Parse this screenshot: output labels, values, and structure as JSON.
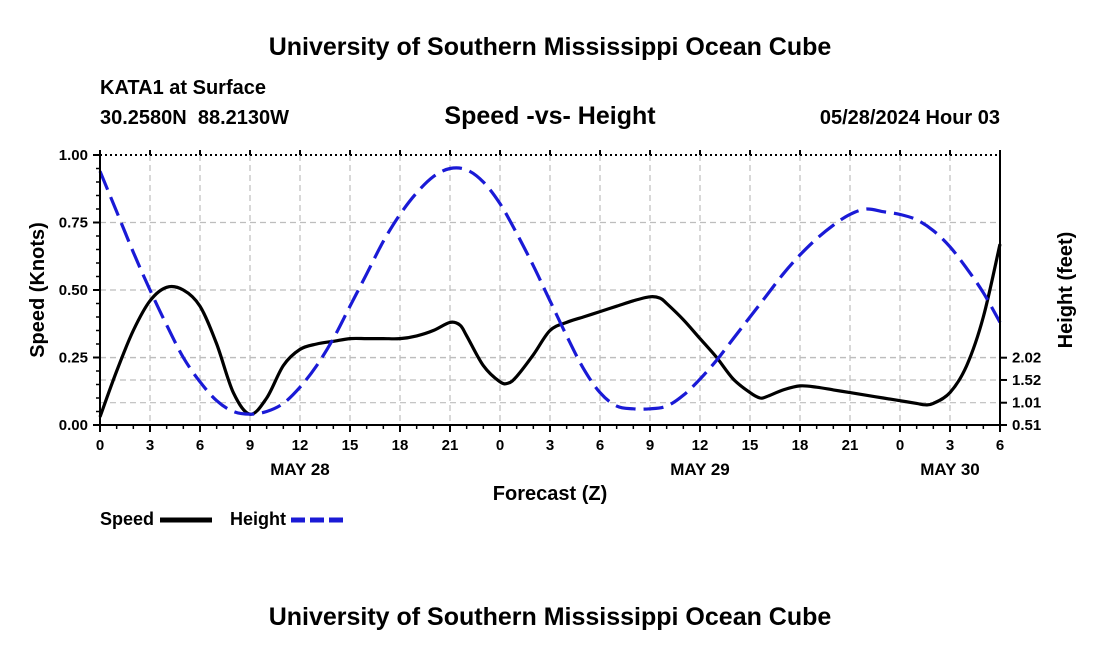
{
  "header": {
    "title": "University of Southern Mississippi Ocean Cube",
    "station": "KATA1 at Surface",
    "coords": "30.2580N  88.2130W",
    "chart_title": "Speed -vs- Height",
    "date": "05/28/2024 Hour 03",
    "footer_title": "University of Southern Mississippi Ocean Cube"
  },
  "legend": {
    "speed_label": "Speed",
    "height_label": "Height"
  },
  "colors": {
    "speed": "#000000",
    "height": "#1a1ad6",
    "grid": "#bdbdbd"
  },
  "chart_data": {
    "type": "line",
    "title": "Speed -vs- Height",
    "xlabel": "Forecast (Z)",
    "ylabel": "Speed (Knots)",
    "y2label": "Height (feet)",
    "x_range": [
      0,
      54
    ],
    "x_ticks": [
      0,
      3,
      6,
      9,
      12,
      15,
      18,
      21,
      24,
      27,
      30,
      33,
      36,
      39,
      42,
      45,
      48,
      51,
      54
    ],
    "x_tick_labels": [
      "0",
      "3",
      "6",
      "9",
      "12",
      "15",
      "18",
      "21",
      "0",
      "3",
      "6",
      "9",
      "12",
      "15",
      "18",
      "21",
      "0",
      "3",
      "6"
    ],
    "day_labels": [
      {
        "x": 12,
        "label": "MAY 28"
      },
      {
        "x": 36,
        "label": "MAY 29"
      },
      {
        "x": 51,
        "label": "MAY 30"
      }
    ],
    "ylim": [
      0,
      1
    ],
    "y_ticks": [
      0,
      0.25,
      0.5,
      0.75,
      1.0
    ],
    "y_tick_labels": [
      "0.00",
      "0.25",
      "0.50",
      "0.75",
      "1.00"
    ],
    "y2_ticks": [
      0.51,
      1.01,
      1.52,
      2.02
    ],
    "y2_tick_labels": [
      "0.51",
      "1.01",
      "1.52",
      "2.02"
    ],
    "y2_to_y1": {
      "offset": 0.51,
      "scale": 0.1651
    },
    "series": [
      {
        "name": "Speed",
        "axis": "left",
        "style": "solid",
        "points": [
          [
            0,
            0.03
          ],
          [
            1,
            0.2
          ],
          [
            2,
            0.35
          ],
          [
            3,
            0.46
          ],
          [
            4,
            0.51
          ],
          [
            5,
            0.5
          ],
          [
            6,
            0.44
          ],
          [
            7,
            0.3
          ],
          [
            8,
            0.12
          ],
          [
            9,
            0.04
          ],
          [
            10,
            0.1
          ],
          [
            11,
            0.22
          ],
          [
            12,
            0.28
          ],
          [
            13,
            0.3
          ],
          [
            14,
            0.31
          ],
          [
            15,
            0.32
          ],
          [
            16,
            0.32
          ],
          [
            17,
            0.32
          ],
          [
            18,
            0.32
          ],
          [
            19,
            0.33
          ],
          [
            20,
            0.35
          ],
          [
            21,
            0.38
          ],
          [
            21.6,
            0.37
          ],
          [
            22,
            0.33
          ],
          [
            23,
            0.22
          ],
          [
            24,
            0.16
          ],
          [
            24.5,
            0.155
          ],
          [
            25,
            0.18
          ],
          [
            26,
            0.26
          ],
          [
            27,
            0.35
          ],
          [
            28,
            0.38
          ],
          [
            29,
            0.4
          ],
          [
            30,
            0.42
          ],
          [
            31,
            0.44
          ],
          [
            32,
            0.46
          ],
          [
            33,
            0.475
          ],
          [
            33.6,
            0.47
          ],
          [
            34,
            0.45
          ],
          [
            35,
            0.39
          ],
          [
            36,
            0.32
          ],
          [
            37,
            0.25
          ],
          [
            38,
            0.17
          ],
          [
            39,
            0.12
          ],
          [
            39.6,
            0.1
          ],
          [
            40,
            0.105
          ],
          [
            41,
            0.13
          ],
          [
            42,
            0.145
          ],
          [
            43,
            0.14
          ],
          [
            44,
            0.13
          ],
          [
            45,
            0.12
          ],
          [
            46,
            0.11
          ],
          [
            47,
            0.1
          ],
          [
            48,
            0.09
          ],
          [
            49,
            0.08
          ],
          [
            49.5,
            0.075
          ],
          [
            50,
            0.08
          ],
          [
            51,
            0.12
          ],
          [
            52,
            0.22
          ],
          [
            53,
            0.4
          ],
          [
            54,
            0.67
          ]
        ]
      },
      {
        "name": "Height",
        "axis": "right",
        "style": "dashed",
        "points": [
          [
            0,
            0.94
          ],
          [
            1,
            0.79
          ],
          [
            2,
            0.64
          ],
          [
            3,
            0.5
          ],
          [
            4,
            0.37
          ],
          [
            5,
            0.25
          ],
          [
            6,
            0.16
          ],
          [
            7,
            0.09
          ],
          [
            8,
            0.05
          ],
          [
            9,
            0.04
          ],
          [
            10,
            0.05
          ],
          [
            11,
            0.08
          ],
          [
            12,
            0.14
          ],
          [
            13,
            0.22
          ],
          [
            14,
            0.32
          ],
          [
            15,
            0.44
          ],
          [
            16,
            0.56
          ],
          [
            17,
            0.68
          ],
          [
            18,
            0.78
          ],
          [
            19,
            0.86
          ],
          [
            20,
            0.92
          ],
          [
            21,
            0.95
          ],
          [
            22,
            0.945
          ],
          [
            23,
            0.9
          ],
          [
            24,
            0.82
          ],
          [
            25,
            0.71
          ],
          [
            26,
            0.59
          ],
          [
            27,
            0.46
          ],
          [
            28,
            0.33
          ],
          [
            29,
            0.21
          ],
          [
            30,
            0.12
          ],
          [
            31,
            0.07
          ],
          [
            32,
            0.06
          ],
          [
            33,
            0.06
          ],
          [
            34,
            0.07
          ],
          [
            35,
            0.11
          ],
          [
            36,
            0.17
          ],
          [
            37,
            0.24
          ],
          [
            38,
            0.32
          ],
          [
            39,
            0.4
          ],
          [
            40,
            0.48
          ],
          [
            41,
            0.56
          ],
          [
            42,
            0.63
          ],
          [
            43,
            0.69
          ],
          [
            44,
            0.74
          ],
          [
            45,
            0.78
          ],
          [
            46,
            0.8
          ],
          [
            47,
            0.79
          ],
          [
            48,
            0.78
          ],
          [
            49,
            0.76
          ],
          [
            50,
            0.72
          ],
          [
            51,
            0.66
          ],
          [
            52,
            0.58
          ],
          [
            53,
            0.49
          ],
          [
            54,
            0.38
          ]
        ]
      }
    ]
  }
}
